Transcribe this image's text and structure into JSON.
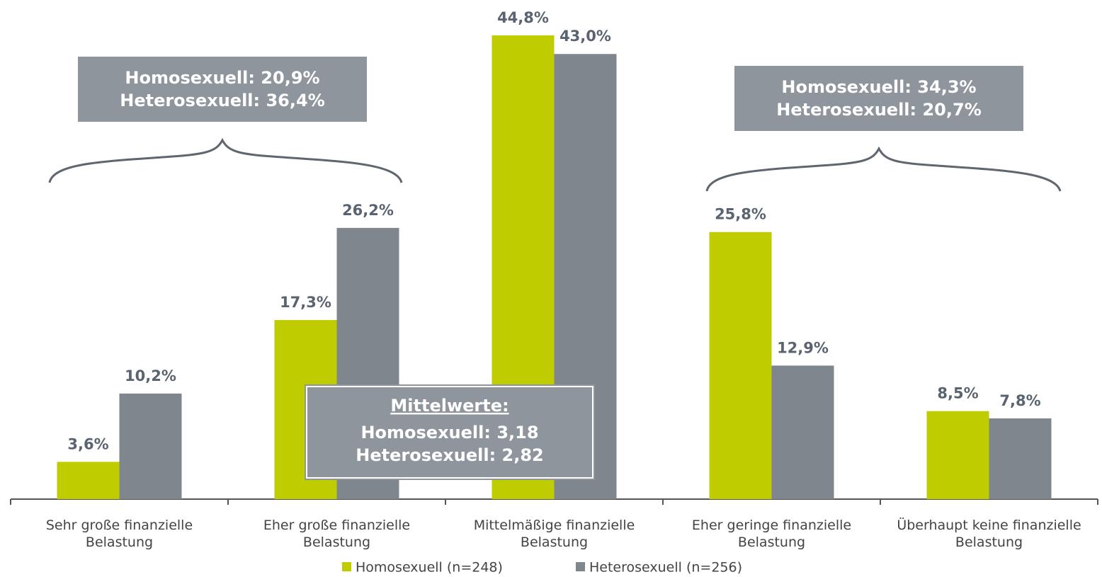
{
  "chart_data": {
    "type": "bar",
    "categories": [
      "Sehr große finanzielle Belastung",
      "Eher große finanzielle Belastung",
      "Mittelmäßige finanzielle Belastung",
      "Eher geringe finanzielle Belastung",
      "Überhaupt keine finanzielle Belastung"
    ],
    "series": [
      {
        "name": "Homosexuell (n=248)",
        "color": "#bfcc00",
        "values": [
          3.6,
          17.3,
          44.8,
          25.8,
          8.5
        ],
        "value_labels": [
          "3,6%",
          "17,3%",
          "44,8%",
          "25,8%",
          "8,5%"
        ]
      },
      {
        "name": "Heterosexuell (n=256)",
        "color": "#80868e",
        "values": [
          10.2,
          26.2,
          43.0,
          12.9,
          7.8
        ],
        "value_labels": [
          "10,2%",
          "26,2%",
          "43,0%",
          "12,9%",
          "7,8%"
        ]
      }
    ],
    "ylim": [
      0,
      45
    ],
    "annotations": [
      {
        "lines": [
          "Homosexuell: 20,9%",
          "Heterosexuell: 36,4%"
        ]
      },
      {
        "lines": [
          "Homosexuell: 34,3%",
          "Heterosexuell: 20,7%"
        ]
      },
      {
        "title": "Mittelwerte:",
        "lines": [
          "Homosexuell: 3,18",
          "Heterosexuell: 2,82"
        ]
      }
    ]
  }
}
